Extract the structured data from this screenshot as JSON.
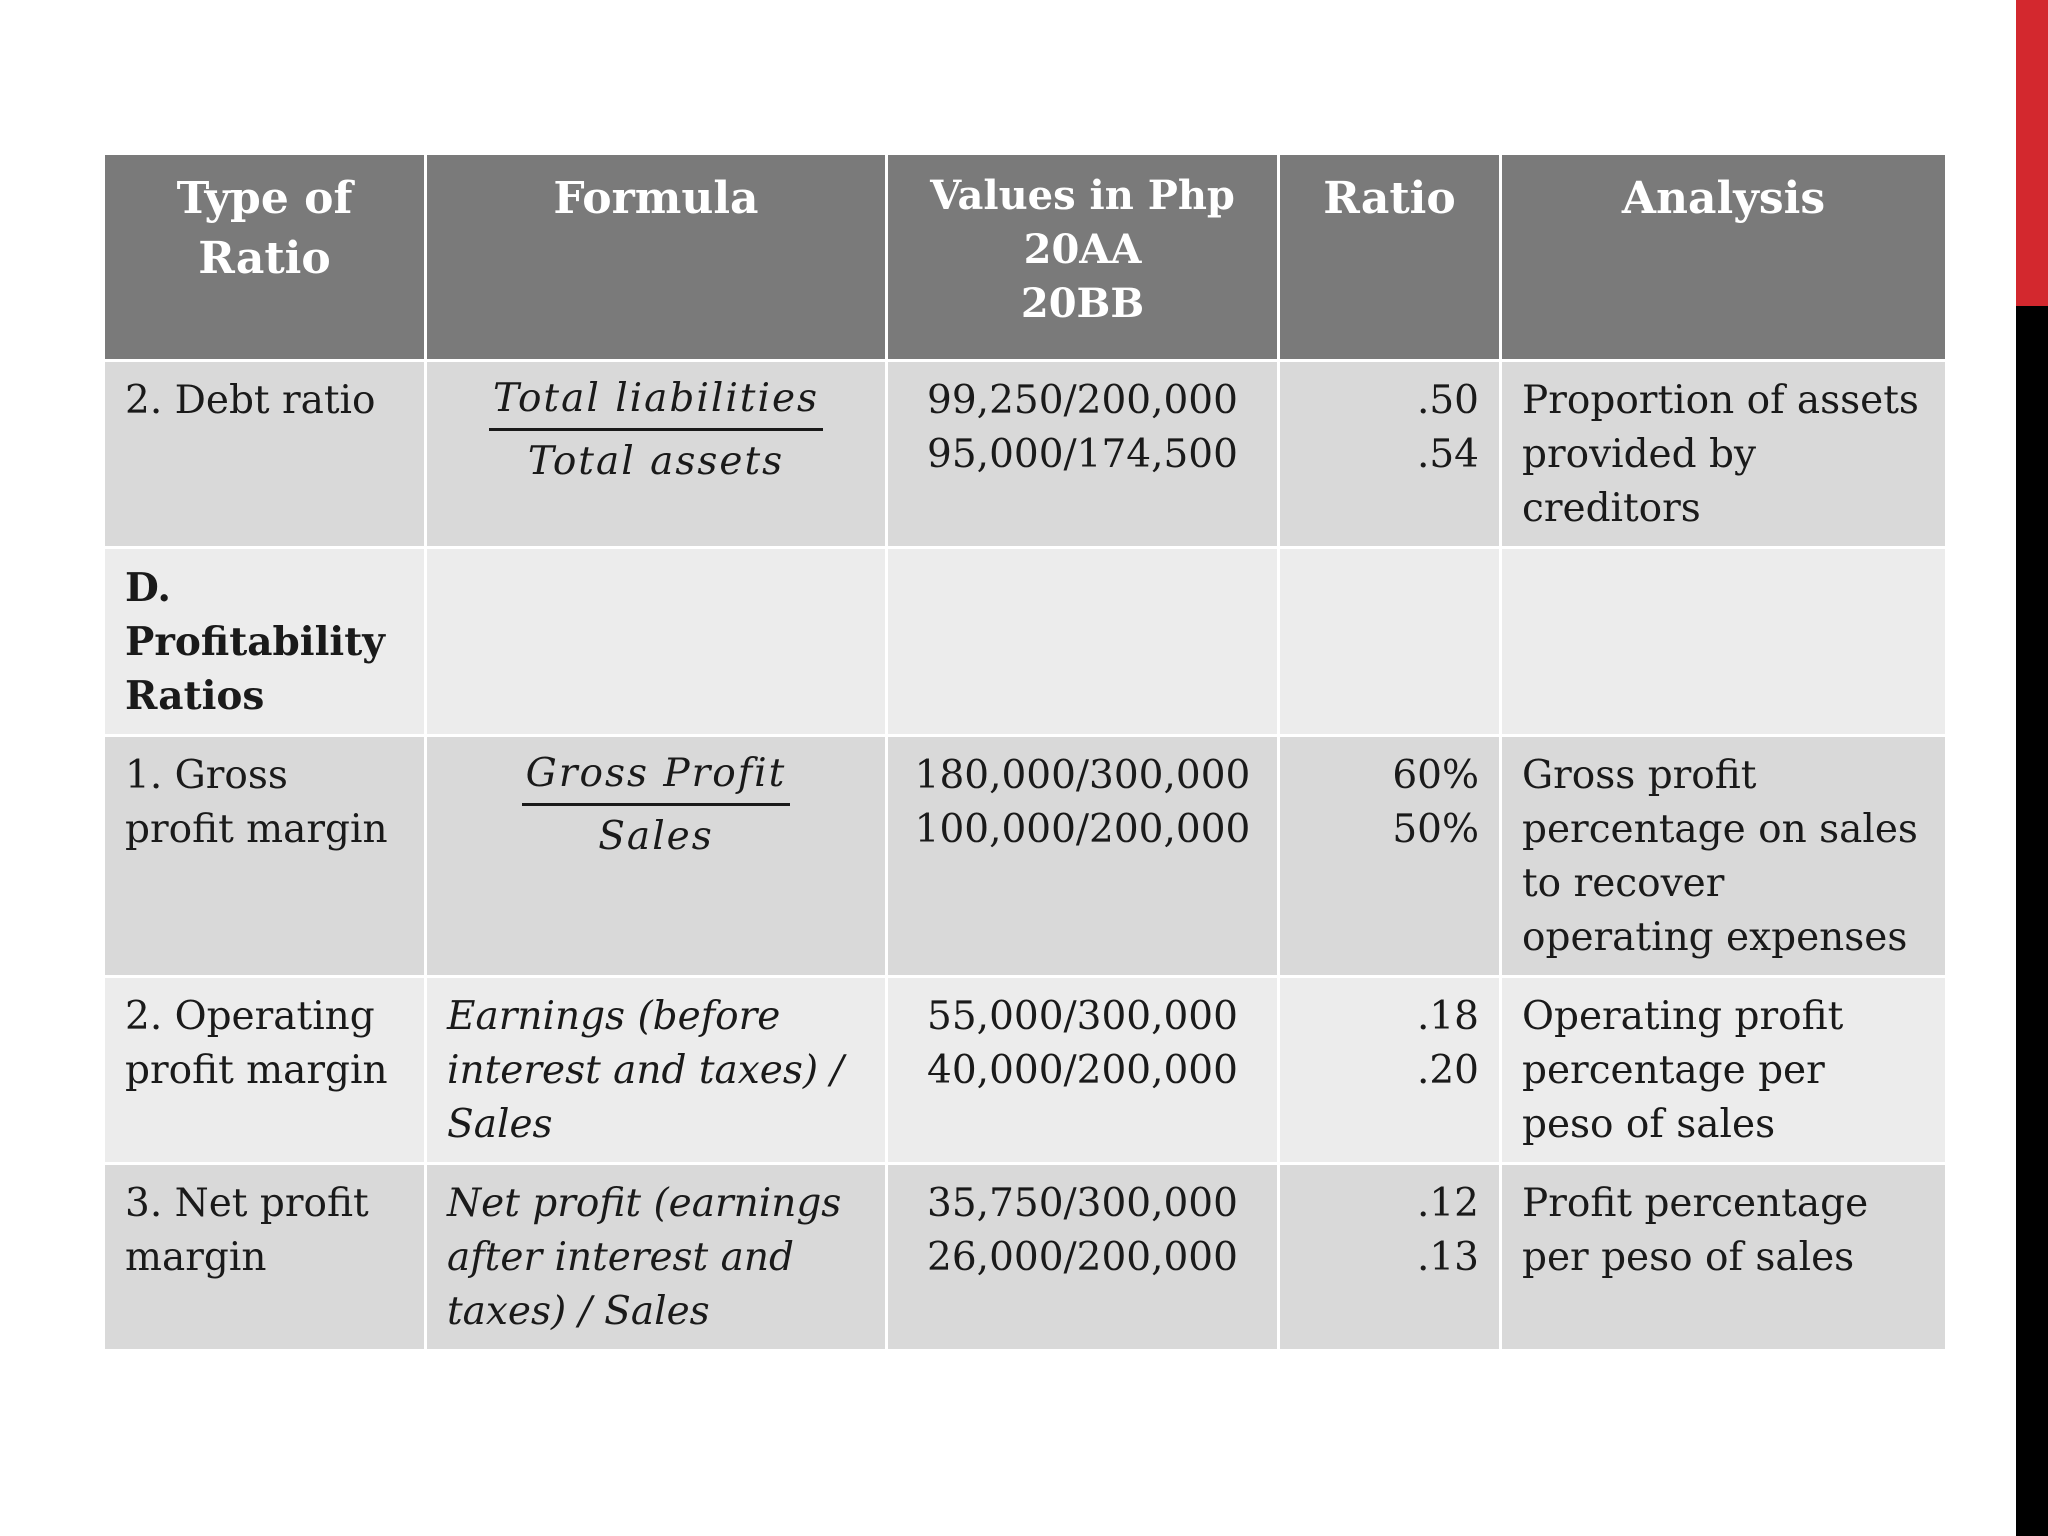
{
  "table": {
    "headers": {
      "type": "Type of Ratio",
      "formula": "Formula",
      "values_title": "Values in Php",
      "values_year1": "20AA",
      "values_year2": "20BB",
      "ratio": "Ratio",
      "analysis": "Analysis"
    },
    "rows": [
      {
        "type": "2. Debt ratio",
        "formula_num": "Total liabilities",
        "formula_den": "Total assets",
        "value1": "99,250/200,000",
        "value2": "95,000/174,500",
        "ratio1": ".50",
        "ratio2": ".54",
        "analysis": "Proportion of assets provided by creditors"
      },
      {
        "section": "D. Profitability Ratios"
      },
      {
        "type": "1. Gross profit margin",
        "formula_num": "Gross Profit",
        "formula_den": "Sales",
        "value1": "180,000/300,000",
        "value2": "100,000/200,000",
        "ratio1": "60%",
        "ratio2": "50%",
        "analysis": "Gross profit percentage on sales to recover operating expenses"
      },
      {
        "type": "2. Operating profit margin",
        "formula": "Earnings (before interest and taxes) / Sales",
        "value1": "55,000/300,000",
        "value2": "40,000/200,000",
        "ratio1": ".18",
        "ratio2": ".20",
        "analysis": "Operating profit percentage per peso of sales"
      },
      {
        "type": "3. Net profit margin",
        "formula": "Net profit (earnings after interest and taxes) / Sales",
        "value1": "35,750/300,000",
        "value2": "26,000/200,000",
        "ratio1": ".12",
        "ratio2": ".13",
        "analysis": "Profit percentage per peso of sales"
      }
    ]
  }
}
